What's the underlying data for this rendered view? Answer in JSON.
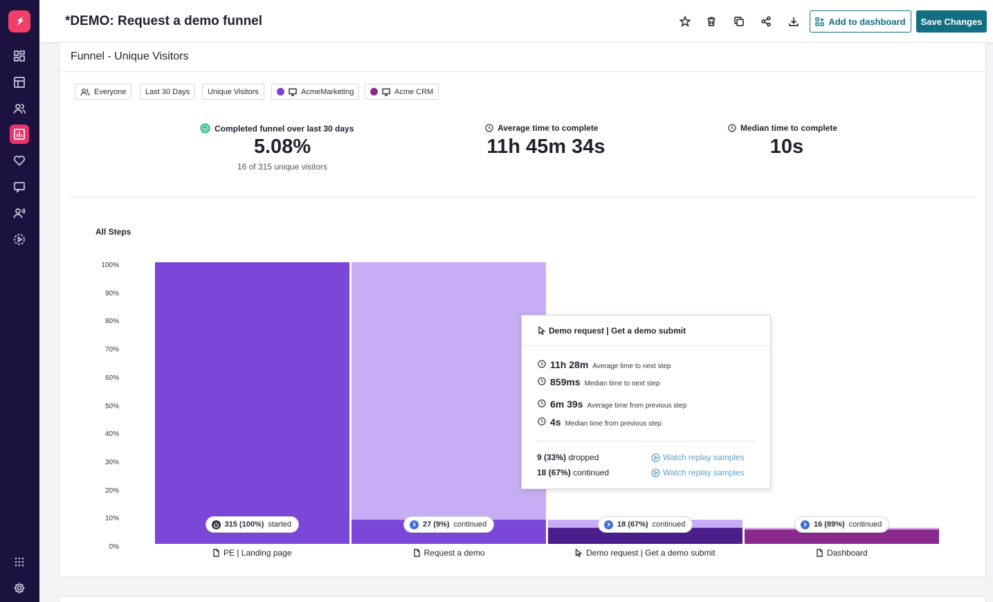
{
  "header": {
    "title": "*DEMO: Request a demo funnel",
    "add_to_dashboard": "Add to dashboard",
    "save_changes": "Save Changes"
  },
  "card": {
    "title": "Funnel - Unique Visitors",
    "chips": [
      {
        "label": "Everyone",
        "icon": "users-icon"
      },
      {
        "label": "Last 30 Days"
      },
      {
        "label": "Unique Visitors"
      },
      {
        "label": "AcmeMarketing",
        "dot_color": "#7b3fd6",
        "icon": "monitor-icon"
      },
      {
        "label": "Acme CRM",
        "dot_color": "#8a2a8c",
        "icon": "monitor-icon"
      }
    ]
  },
  "stats": {
    "completed": {
      "label": "Completed funnel over last 30 days",
      "value": "5.08%",
      "sub": "16 of 315 unique visitors"
    },
    "average": {
      "label": "Average time to complete",
      "value": "11h 45m 34s"
    },
    "median": {
      "label": "Median time to complete",
      "value": "10s"
    }
  },
  "colors": {
    "accent": "#126e82",
    "brand": "#f0406a",
    "bar_primary": "#7b47d8",
    "bar_light": "#c7adf4",
    "bar_dark": "#4a1f8c",
    "bar_magenta": "#8a2a8c",
    "bar_magenta_light": "#d9a6e0"
  },
  "chart_data": {
    "type": "bar",
    "title": "All Steps",
    "ylim": [
      0,
      100
    ],
    "yticks": [
      "100%",
      "90%",
      "80%",
      "70%",
      "60%",
      "50%",
      "40%",
      "30%",
      "20%",
      "10%",
      "0%"
    ],
    "categories": [
      "PE | Landing page",
      "Request a demo",
      "Demo request | Get a demo submit",
      "Dashboard"
    ],
    "step_icons": [
      "page-icon",
      "page-icon",
      "cursor-icon",
      "page-icon"
    ],
    "values": [
      100,
      8.57,
      5.71,
      5.08
    ],
    "previous_values": [
      100,
      100,
      8.57,
      5.71
    ],
    "counts": [
      "315 (100%)",
      "27 (9%)",
      "18 (67%)",
      "16 (89%)"
    ],
    "count_labels": [
      "started",
      "continued",
      "continued",
      "continued"
    ]
  },
  "tooltip": {
    "title": "Demo request | Get a demo submit",
    "avg_next": {
      "value": "11h 28m",
      "label": "Average time to next step"
    },
    "median_next": {
      "value": "859ms",
      "label": "Median time to next step"
    },
    "avg_prev": {
      "value": "6m 39s",
      "label": "Average time from previous step"
    },
    "median_prev": {
      "value": "4s",
      "label": "Median time from previous step"
    },
    "dropped": {
      "count": "9 (33%)",
      "label": "dropped"
    },
    "continued": {
      "count": "18 (67%)",
      "label": "continued"
    },
    "watch_link": "Watch replay samples"
  }
}
